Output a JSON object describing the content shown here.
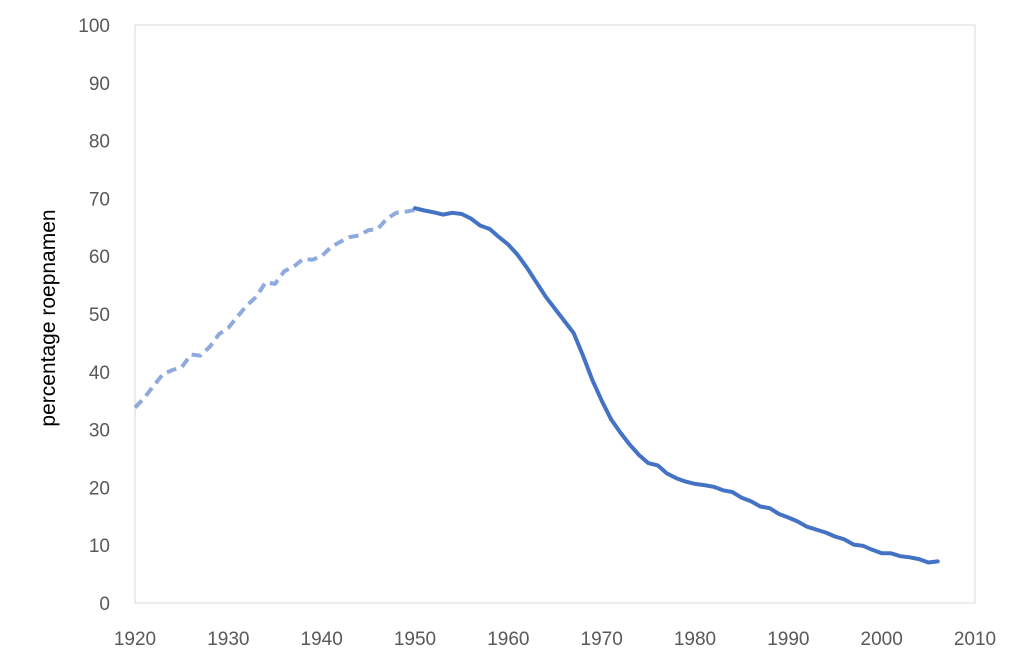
{
  "chart_data": {
    "type": "line",
    "title": "",
    "xlabel": "",
    "ylabel": "percentage roepnamen",
    "xlim": [
      1920,
      2010
    ],
    "ylim": [
      0,
      100
    ],
    "x_ticks": [
      "1920",
      "1930",
      "1940",
      "1950",
      "1960",
      "1970",
      "1980",
      "1990",
      "2000",
      "2010"
    ],
    "y_ticks": [
      "0",
      "10",
      "20",
      "30",
      "40",
      "50",
      "60",
      "70",
      "80",
      "90",
      "100"
    ],
    "grid": false,
    "legend": "none",
    "series": [
      {
        "style": "dashed",
        "color": "#8faadc",
        "x": [
          1920,
          1921,
          1922,
          1923,
          1924,
          1925,
          1926,
          1927,
          1928,
          1929,
          1930,
          1931,
          1932,
          1933,
          1934,
          1935,
          1936,
          1937,
          1938,
          1939,
          1940,
          1941,
          1942,
          1943,
          1944,
          1945,
          1946,
          1947,
          1948,
          1949,
          1950
        ],
        "y": [
          33.8,
          35.5,
          37.6,
          39.6,
          40.3,
          40.8,
          43.0,
          42.8,
          44.3,
          46.5,
          47.6,
          49.6,
          51.5,
          53.0,
          55.5,
          55.2,
          57.4,
          58.2,
          59.5,
          59.4,
          60.0,
          61.6,
          62.5,
          63.3,
          63.6,
          64.5,
          64.7,
          66.5,
          67.5,
          67.7,
          68.0
        ]
      },
      {
        "style": "solid",
        "color": "#4472c4",
        "x": [
          1950,
          1951,
          1952,
          1953,
          1954,
          1955,
          1956,
          1957,
          1958,
          1959,
          1960,
          1961,
          1962,
          1963,
          1964,
          1965,
          1966,
          1967,
          1968,
          1969,
          1970,
          1971,
          1972,
          1973,
          1974,
          1975,
          1976,
          1977,
          1978,
          1979,
          1980,
          1981,
          1982,
          1983,
          1984,
          1985,
          1986,
          1987,
          1988,
          1989,
          1990,
          1991,
          1992,
          1993,
          1994,
          1995,
          1996,
          1997,
          1998,
          1999,
          2000,
          2001,
          2002,
          2003,
          2004,
          2005,
          2006
        ],
        "y": [
          68.3,
          67.9,
          67.6,
          67.2,
          67.5,
          67.3,
          66.5,
          65.3,
          64.7,
          63.3,
          62.0,
          60.2,
          58.0,
          55.5,
          53.0,
          50.9,
          48.8,
          46.7,
          42.8,
          38.6,
          35.0,
          31.8,
          29.5,
          27.4,
          25.6,
          24.2,
          23.8,
          22.4,
          21.6,
          21.0,
          20.6,
          20.4,
          20.1,
          19.5,
          19.2,
          18.2,
          17.6,
          16.7,
          16.4,
          15.4,
          14.8,
          14.1,
          13.2,
          12.7,
          12.2,
          11.5,
          11.0,
          10.1,
          9.9,
          9.2,
          8.6,
          8.6,
          8.1,
          7.9,
          7.6,
          7.0,
          7.2
        ]
      }
    ]
  }
}
